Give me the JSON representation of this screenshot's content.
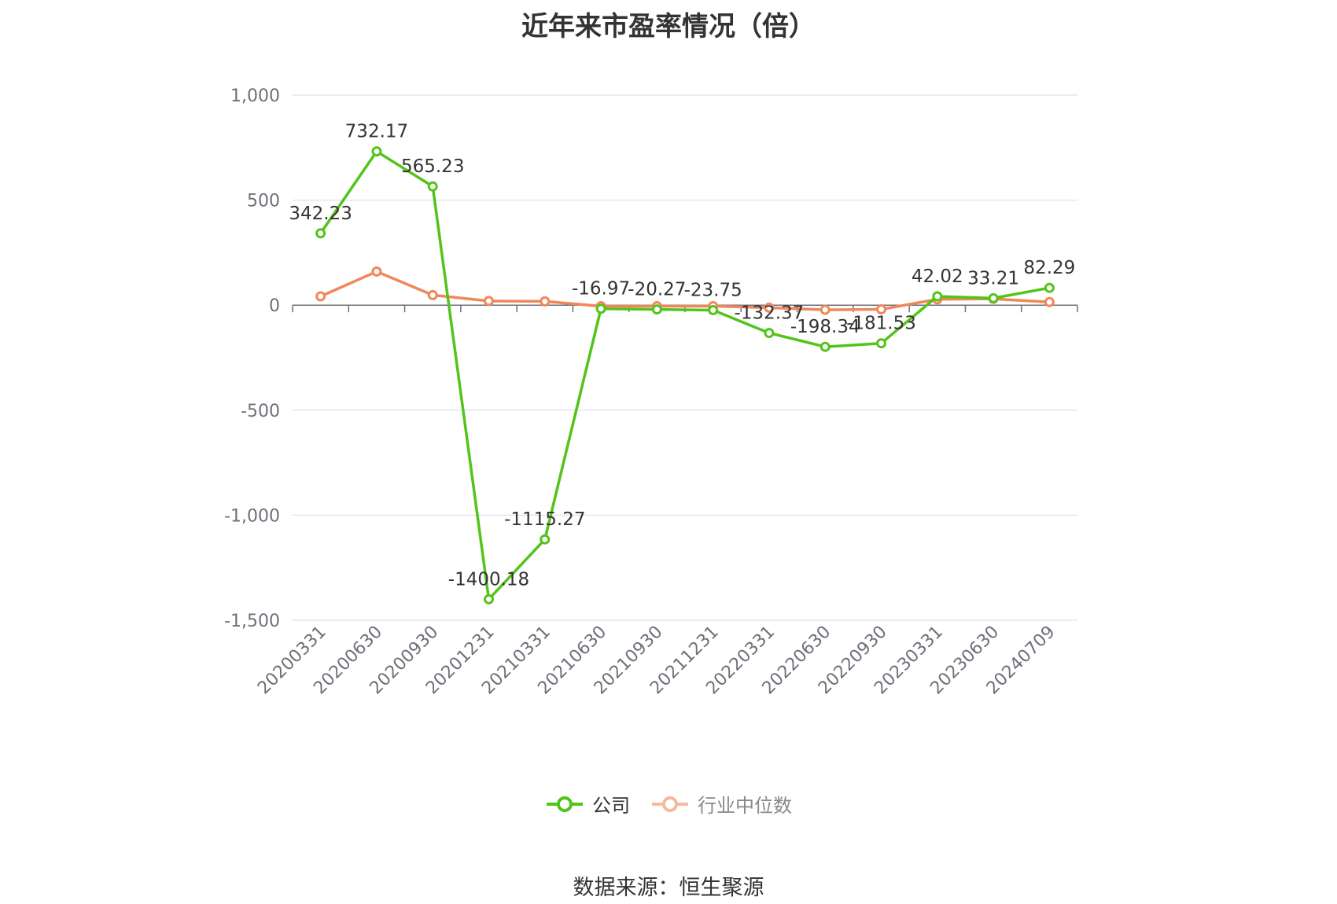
{
  "title": "近年来市盈率情况（倍）",
  "source": "数据来源：恒生聚源",
  "legend": [
    {
      "name": "公司",
      "color": "#52c41a",
      "muted": false
    },
    {
      "name": "行业中位数",
      "color": "#f0875a",
      "muted": true
    }
  ],
  "chart_data": {
    "type": "line",
    "categories": [
      "20200331",
      "20200630",
      "20200930",
      "20201231",
      "20210331",
      "20210630",
      "20210930",
      "20211231",
      "20220331",
      "20220630",
      "20220930",
      "20230331",
      "20230630",
      "20240709"
    ],
    "y_ticks": [
      "1,000",
      "500",
      "0",
      "-500",
      "-1,000",
      "-1,500"
    ],
    "ylim": [
      -1500,
      1000
    ],
    "grid": true,
    "legend_position": "bottom",
    "series": [
      {
        "name": "公司",
        "color": "#52c41a",
        "values": [
          342.23,
          732.17,
          565.23,
          -1400.18,
          -1115.27,
          -16.97,
          -20.27,
          -23.75,
          -132.37,
          -198.34,
          -181.53,
          42.02,
          33.21,
          82.29
        ],
        "labels": [
          "342.23",
          "732.17",
          "565.23",
          "-1400.18",
          "-1115.27",
          "-16.97",
          "-20.27",
          "-23.75",
          "-132.37",
          "-198.34",
          "-181.53",
          "42.02",
          "33.21",
          "82.29"
        ]
      },
      {
        "name": "行业中位数",
        "color": "#f0875a",
        "values": [
          42,
          160,
          48,
          20,
          18,
          -5,
          -5,
          -5,
          -12,
          -22,
          -20,
          28,
          30,
          15
        ]
      }
    ]
  }
}
